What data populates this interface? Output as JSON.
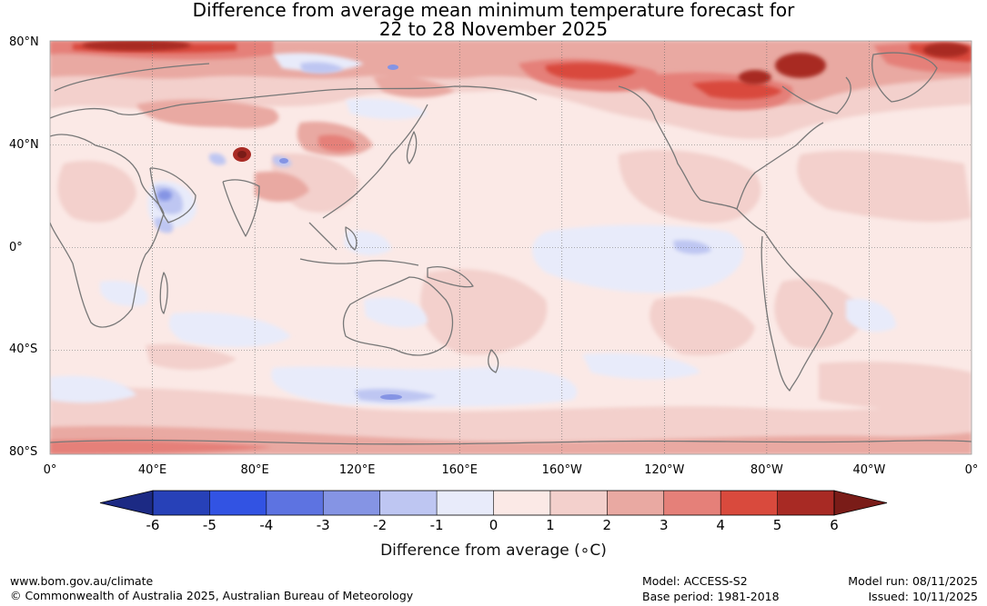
{
  "title": {
    "line1": "Difference from average mean minimum temperature forecast for",
    "line2": "22 to 28 November 2025"
  },
  "map": {
    "lat_labels": [
      "80°N",
      "40°N",
      "0°",
      "40°S",
      "80°S"
    ],
    "lon_labels": [
      "0°",
      "40°E",
      "80°E",
      "120°E",
      "160°E",
      "160°W",
      "120°W",
      "80°W",
      "40°W",
      "0°"
    ],
    "lat_values": [
      80,
      40,
      0,
      -40,
      -80
    ],
    "lon_values": [
      0,
      40,
      80,
      120,
      160,
      200,
      240,
      280,
      320,
      360
    ],
    "background_anomaly_color": "#fbe9e6",
    "anomaly_regions": [
      {
        "region": "Arctic Russia / Siberia north coast",
        "anomaly_range": "3 to 6",
        "color": "#a82a24"
      },
      {
        "region": "Northern Canada / Hudson Bay",
        "anomaly_range": "4 to 6",
        "color": "#a82a24"
      },
      {
        "region": "Greenland / Baffin",
        "anomaly_range": "3 to 5",
        "color": "#d94a3d"
      },
      {
        "region": "Alaska",
        "anomaly_range": "3 to 5",
        "color": "#d94a3d"
      },
      {
        "region": "Tibetan Plateau",
        "anomaly_range": "4 to 6",
        "color": "#a82a24"
      },
      {
        "region": "Central Asia / Kazakhstan",
        "anomaly_range": "2 to 3",
        "color": "#e9a9a2"
      },
      {
        "region": "Arabian Peninsula",
        "anomaly_range": "-1 to -3",
        "color": "#8594e4"
      },
      {
        "region": "Equatorial Pacific",
        "anomaly_range": "0 to -1",
        "color": "#e8ebfa"
      },
      {
        "region": "Southern Ocean band",
        "anomaly_range": "0 to -2",
        "color": "#bec6f2"
      },
      {
        "region": "Antarctic coast",
        "anomaly_range": "1 to 3",
        "color": "#e9a9a2"
      }
    ]
  },
  "colorbar": {
    "label": "Difference from average (∘C)",
    "tick_labels": [
      "-6",
      "-5",
      "-4",
      "-3",
      "-2",
      "-1",
      "0",
      "1",
      "2",
      "3",
      "4",
      "5",
      "6"
    ],
    "ticks": [
      -6,
      -5,
      -4,
      -3,
      -2,
      -1,
      0,
      1,
      2,
      3,
      4,
      5,
      6
    ],
    "colors": [
      "#1c2a84",
      "#2741b8",
      "#3253e3",
      "#5d73e1",
      "#8594e4",
      "#bec6f2",
      "#e8ebfa",
      "#fbe9e6",
      "#f3d0cc",
      "#e9a9a2",
      "#e58079",
      "#d94a3d",
      "#a82a24",
      "#7a1c18"
    ]
  },
  "footer": {
    "url": "www.bom.gov.au/climate",
    "copyright": "© Commonwealth of Australia 2025, Australian Bureau of Meteorology",
    "model": "Model: ACCESS-S2",
    "base_period": "Base period: 1981-2018",
    "model_run": "Model run: 08/11/2025",
    "issued": "Issued: 10/11/2025"
  }
}
